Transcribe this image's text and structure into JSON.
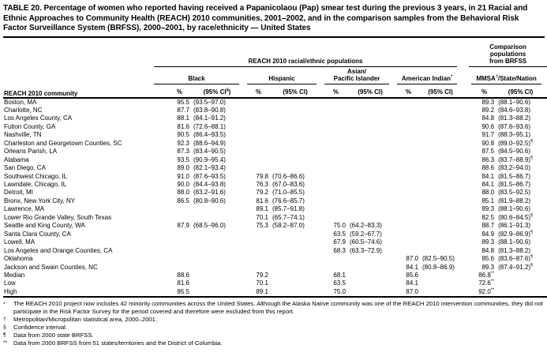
{
  "title": "TABLE 20. Percentage of women who reported having received a Papanicolaou (Pap) smear test during the previous 3 years, in 21 Racial and Ethnic Approaches to Community Health (REACH) 2010 communities, 2001–2002, and in the comparison samples from the Behavioral Risk Factor Surveillance System (BRFSS), 2000–2001, by race/ethnicity — United States",
  "header": {
    "community_label": "REACH 2010 community",
    "reach_spanner": "REACH 2010 racial/ethnic populations",
    "comparison_line1": "Comparison",
    "comparison_line2": "populations",
    "comparison_line3": "from BRFSS",
    "black": "Black",
    "hispanic": "Hispanic",
    "api_line1": "Asian/",
    "api_line2": "Pacific Islander",
    "american_indian": "American Indian",
    "american_indian_sup": "*",
    "mmsa_pre": "MMSA",
    "mmsa_sup": "†",
    "mmsa_post": "/State/Nation",
    "pct": "%",
    "ci": "(95% CI)",
    "ci_first_pre": "(95% CI",
    "ci_first_sup": "§",
    "ci_first_post": ")"
  },
  "table": {
    "rows": [
      [
        "Boston, MA",
        "95.5",
        "(93.5–97.0)",
        "",
        "",
        "",
        "",
        "",
        "",
        "89.3",
        "(88.1–90.6)"
      ],
      [
        "Charlotte, NC",
        "87.7",
        "(83.8–90.8)",
        "",
        "",
        "",
        "",
        "",
        "",
        "89.2",
        "(84.6–93.8)"
      ],
      [
        "Los Angeles County, CA",
        "88.1",
        "(84.1–91.2)",
        "",
        "",
        "",
        "",
        "",
        "",
        "84.8",
        "(81.3–88.2)"
      ],
      [
        "Fulton County, GA",
        "81.6",
        "(72.6–88.1)",
        "",
        "",
        "",
        "",
        "",
        "",
        "90.6",
        "(87.6–93.6)"
      ],
      [
        "Nashville, TN",
        "90.5",
        "(86.4–93.5)",
        "",
        "",
        "",
        "",
        "",
        "",
        "91.7",
        "(88.3–95.1)"
      ],
      [
        "Charleston and Georgetown Counties, SC",
        "92.3",
        "(88.6–94.9)",
        "",
        "",
        "",
        "",
        "",
        "",
        "90.8",
        "(89.0–92.5)¶"
      ],
      [
        "Orleans Parish, LA",
        "87.3",
        "(83.4–90.5)",
        "",
        "",
        "",
        "",
        "",
        "",
        "87.5",
        "(84.5–90.6)"
      ],
      [
        "Alabama",
        "93.5",
        "(90.9–95.4)",
        "",
        "",
        "",
        "",
        "",
        "",
        "86.3",
        "(83.7–88.9)¶"
      ],
      [
        "San Diego, CA",
        "89.0",
        "(82.1–93.4)",
        "",
        "",
        "",
        "",
        "",
        "",
        "88.6",
        "(83.2–94.0)"
      ],
      [
        "Southwest Chicago, IL",
        "91.0",
        "(87.6–93.5)",
        "79.8",
        "(70.6–86.6)",
        "",
        "",
        "",
        "",
        "84.1",
        "(81.5–86.7)"
      ],
      [
        "Lawndale, Chicago, IL",
        "90.0",
        "(84.4–93.8)",
        "76.3",
        "(67.0–83.6)",
        "",
        "",
        "",
        "",
        "84.1",
        "(81.5–86.7)"
      ],
      [
        "Detroit, MI",
        "88.0",
        "(83.2–91.6)",
        "79.2",
        "(71.0–85.5)",
        "",
        "",
        "",
        "",
        "88.0",
        "(83.5–92.5)"
      ],
      [
        "Bronx, New York City, NY",
        "86.5",
        "(80.8–90.6)",
        "81.6",
        "(76.6–85.7)",
        "",
        "",
        "",
        "",
        "85.1",
        "(81.9–88.2)"
      ],
      [
        "Lawrence, MA",
        "",
        "",
        "89.1",
        "(85.7–91.8)",
        "",
        "",
        "",
        "",
        "89.3",
        "(88.1–90.6)"
      ],
      [
        "Lower Rio Grande Valley, South Texas",
        "",
        "",
        "70.1",
        "(65.7–74.1)",
        "",
        "",
        "",
        "",
        "82.5",
        "(80.6–84.5)¶"
      ],
      [
        "Seattle and King County, WA",
        "87.9",
        "(68.5–96.0)",
        "75.3",
        "(58.2–87.0)",
        "75.0",
        "(64.2–83.3)",
        "",
        "",
        "88.7",
        "(86.1–91.3)"
      ],
      [
        "Santa Clara County, CA",
        "",
        "",
        "",
        "",
        "63.5",
        "(59.2–67.7)",
        "",
        "",
        "84.9",
        "(82.9–86.9)¶"
      ],
      [
        "Lowell, MA",
        "",
        "",
        "",
        "",
        "67.9",
        "(60.5–74.6)",
        "",
        "",
        "89.3",
        "(88.1–90.6)"
      ],
      [
        "Los Angeles and Orange Counties, CA",
        "",
        "",
        "",
        "",
        "68.3",
        "(63.3–72.9)",
        "",
        "",
        "84.8",
        "(81.3–88.2)"
      ],
      [
        "Oklahoma",
        "",
        "",
        "",
        "",
        "",
        "",
        "87.0",
        "(82.5–90.5)",
        "85.6",
        "(83.6–87.6)¶"
      ],
      [
        "Jackson and Swain Counties, NC",
        "",
        "",
        "",
        "",
        "",
        "",
        "84.1",
        "(80.8–86.9)",
        "89.3",
        "(87.4–91.2)¶"
      ],
      [
        "Median",
        "88.6",
        "",
        "79.2",
        "",
        "68.1",
        "",
        "85.6",
        "",
        "86.8**",
        ""
      ],
      [
        "Low",
        "81.6",
        "",
        "70.1",
        "",
        "63.5",
        "",
        "84.1",
        "",
        "72.6**",
        ""
      ],
      [
        "High",
        "95.5",
        "",
        "89.1",
        "",
        "75.0",
        "",
        "87.0",
        "",
        "92.0**",
        ""
      ]
    ]
  },
  "footnotes": [
    {
      "sym": "*",
      "text": "The REACH 2010 project now includes 42 minority communities across the United States. Although the Alaska Native community was one of the REACH 2010 intervention communities, they did not participate in the Risk Factor Survey for the period covered and therefore were excluded from this report."
    },
    {
      "sym": "†",
      "text": "Metropolitan/Micropolitan statistical area, 2000–2001."
    },
    {
      "sym": "§",
      "text": "Confidence interval."
    },
    {
      "sym": "¶",
      "text": "Data from 2000 state BRFSS."
    },
    {
      "sym": "**",
      "text": "Data from 2000 BRFSS from 51 states/territories and the District of Columbia."
    }
  ]
}
